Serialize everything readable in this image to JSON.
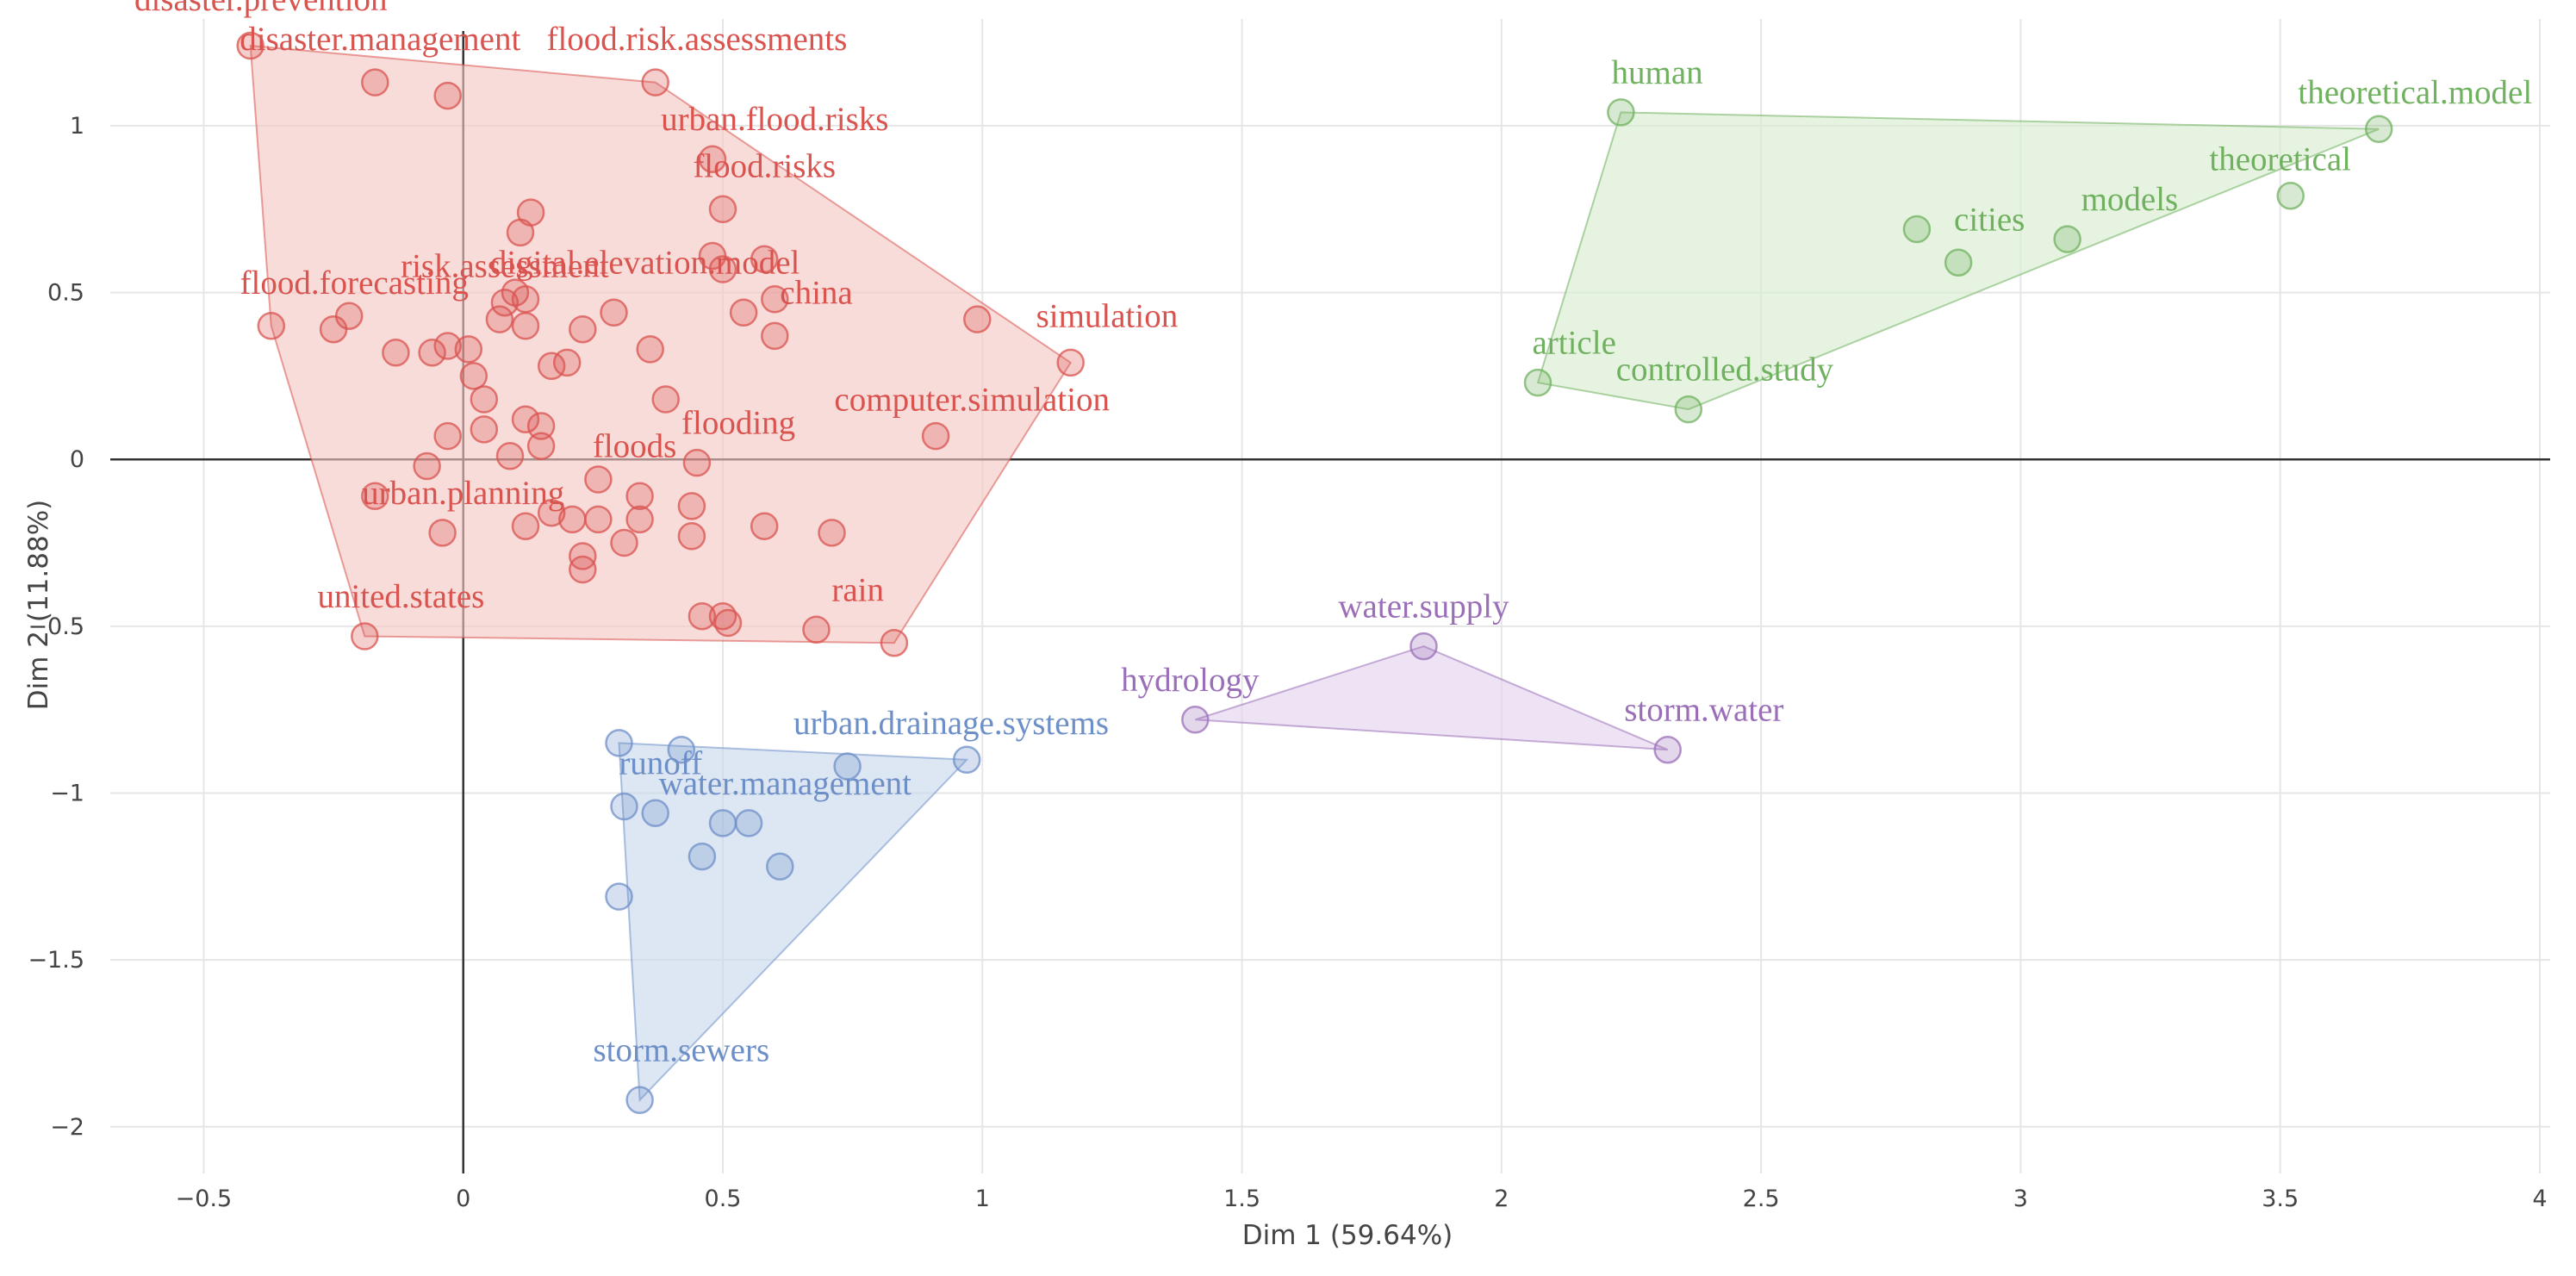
{
  "chart_data": {
    "type": "scatter",
    "xlabel": "Dim 1 (59.64%)",
    "ylabel": "Dim 2 (11.88%)",
    "xlim": [
      -0.68,
      4.02
    ],
    "ylim": [
      -2.14,
      1.32
    ],
    "x_ticks": [
      {
        "value": -0.5,
        "label": "−0.5"
      },
      {
        "value": 0,
        "label": "0"
      },
      {
        "value": 0.5,
        "label": "0.5"
      },
      {
        "value": 1,
        "label": "1"
      },
      {
        "value": 1.5,
        "label": "1.5"
      },
      {
        "value": 2,
        "label": "2"
      },
      {
        "value": 2.5,
        "label": "2.5"
      },
      {
        "value": 3,
        "label": "3"
      },
      {
        "value": 3.5,
        "label": "3.5"
      },
      {
        "value": 4,
        "label": "4"
      }
    ],
    "y_ticks": [
      {
        "value": 1,
        "label": "1"
      },
      {
        "value": 0.5,
        "label": "0.5"
      },
      {
        "value": 0,
        "label": "0"
      },
      {
        "value": -0.5,
        "label": "−0.5"
      },
      {
        "value": -1,
        "label": "−1"
      },
      {
        "value": -1.5,
        "label": "−1.5"
      },
      {
        "value": -2,
        "label": "−2"
      }
    ],
    "grid": true,
    "clusters": [
      {
        "name": "cluster-1",
        "color": "#d9534f",
        "fill": "#f4c7c3",
        "hull": [
          [
            -0.41,
            1.24
          ],
          [
            0.37,
            1.13
          ],
          [
            1.17,
            0.29
          ],
          [
            0.83,
            -0.55
          ],
          [
            -0.19,
            -0.53
          ],
          [
            -0.37,
            0.4
          ]
        ],
        "points": [
          [
            -0.41,
            1.24
          ],
          [
            -0.17,
            1.13
          ],
          [
            -0.03,
            1.09
          ],
          [
            0.37,
            1.13
          ],
          [
            0.48,
            0.9
          ],
          [
            0.5,
            0.75
          ],
          [
            0.11,
            0.68
          ],
          [
            0.13,
            0.74
          ],
          [
            0.48,
            0.61
          ],
          [
            0.5,
            0.57
          ],
          [
            0.58,
            0.6
          ],
          [
            0.6,
            0.48
          ],
          [
            0.54,
            0.44
          ],
          [
            0.6,
            0.37
          ],
          [
            0.99,
            0.42
          ],
          [
            1.17,
            0.29
          ],
          [
            -0.37,
            0.4
          ],
          [
            -0.22,
            0.43
          ],
          [
            -0.25,
            0.39
          ],
          [
            -0.13,
            0.32
          ],
          [
            -0.06,
            0.32
          ],
          [
            -0.03,
            0.34
          ],
          [
            0.01,
            0.33
          ],
          [
            0.02,
            0.25
          ],
          [
            0.04,
            0.18
          ],
          [
            0.04,
            0.09
          ],
          [
            0.07,
            0.42
          ],
          [
            0.08,
            0.47
          ],
          [
            0.1,
            0.5
          ],
          [
            0.12,
            0.48
          ],
          [
            0.12,
            0.4
          ],
          [
            0.17,
            0.28
          ],
          [
            0.2,
            0.29
          ],
          [
            0.23,
            0.39
          ],
          [
            0.29,
            0.44
          ],
          [
            0.36,
            0.33
          ],
          [
            0.39,
            0.18
          ],
          [
            0.12,
            0.12
          ],
          [
            0.15,
            0.1
          ],
          [
            0.15,
            0.04
          ],
          [
            0.09,
            0.01
          ],
          [
            -0.03,
            0.07
          ],
          [
            -0.07,
            -0.02
          ],
          [
            -0.17,
            -0.11
          ],
          [
            -0.04,
            -0.22
          ],
          [
            0.12,
            -0.2
          ],
          [
            0.17,
            -0.16
          ],
          [
            0.21,
            -0.18
          ],
          [
            0.23,
            -0.29
          ],
          [
            0.23,
            -0.33
          ],
          [
            0.26,
            -0.06
          ],
          [
            0.26,
            -0.18
          ],
          [
            0.31,
            -0.25
          ],
          [
            0.34,
            -0.11
          ],
          [
            0.34,
            -0.18
          ],
          [
            0.44,
            -0.14
          ],
          [
            0.44,
            -0.23
          ],
          [
            0.45,
            -0.01
          ],
          [
            0.58,
            -0.2
          ],
          [
            0.71,
            -0.22
          ],
          [
            0.91,
            0.07
          ],
          [
            0.46,
            -0.47
          ],
          [
            0.5,
            -0.47
          ],
          [
            0.51,
            -0.49
          ],
          [
            0.68,
            -0.51
          ],
          [
            0.83,
            -0.55
          ],
          [
            -0.19,
            -0.53
          ]
        ],
        "labels": [
          {
            "text": "disaster.prevention",
            "x": -0.39,
            "y": 1.38
          },
          {
            "text": "disaster.management",
            "x": -0.16,
            "y": 1.26
          },
          {
            "text": "flood.risk.assessments",
            "x": 0.45,
            "y": 1.26
          },
          {
            "text": "urban.flood.risks",
            "x": 0.6,
            "y": 1.02
          },
          {
            "text": "flood.risks",
            "x": 0.58,
            "y": 0.88
          },
          {
            "text": "risk.assessment",
            "x": 0.08,
            "y": 0.58
          },
          {
            "text": "digital.elevation.model",
            "x": 0.35,
            "y": 0.59
          },
          {
            "text": "flood.forecasting",
            "x": -0.21,
            "y": 0.53
          },
          {
            "text": "china",
            "x": 0.68,
            "y": 0.5
          },
          {
            "text": "simulation",
            "x": 1.24,
            "y": 0.43
          },
          {
            "text": "computer.simulation",
            "x": 0.98,
            "y": 0.18
          },
          {
            "text": "flooding",
            "x": 0.53,
            "y": 0.11
          },
          {
            "text": "floods",
            "x": 0.33,
            "y": 0.04
          },
          {
            "text": "urban.planning",
            "x": 0.0,
            "y": -0.1
          },
          {
            "text": "united.states",
            "x": -0.12,
            "y": -0.41
          },
          {
            "text": "rain",
            "x": 0.76,
            "y": -0.39
          }
        ]
      },
      {
        "name": "cluster-2",
        "color": "#6d8fc8",
        "fill": "#c8d6ec",
        "hull": [
          [
            0.3,
            -0.85
          ],
          [
            0.97,
            -0.9
          ],
          [
            0.34,
            -1.92
          ]
        ],
        "points": [
          [
            0.3,
            -0.85
          ],
          [
            0.42,
            -0.87
          ],
          [
            0.74,
            -0.92
          ],
          [
            0.97,
            -0.9
          ],
          [
            0.31,
            -1.04
          ],
          [
            0.37,
            -1.06
          ],
          [
            0.5,
            -1.09
          ],
          [
            0.55,
            -1.09
          ],
          [
            0.46,
            -1.19
          ],
          [
            0.61,
            -1.22
          ],
          [
            0.3,
            -1.31
          ],
          [
            0.34,
            -1.92
          ]
        ],
        "labels": [
          {
            "text": "urban.drainage.systems",
            "x": 0.94,
            "y": -0.79
          },
          {
            "text": "runoff",
            "x": 0.38,
            "y": -0.91
          },
          {
            "text": "water.management",
            "x": 0.62,
            "y": -0.97
          },
          {
            "text": "storm.sewers",
            "x": 0.42,
            "y": -1.77
          }
        ]
      },
      {
        "name": "cluster-3",
        "color": "#9b6fb8",
        "fill": "#e2d2ee",
        "hull": [
          [
            1.41,
            -0.78
          ],
          [
            1.85,
            -0.56
          ],
          [
            2.32,
            -0.87
          ]
        ],
        "points": [
          [
            1.41,
            -0.78
          ],
          [
            1.85,
            -0.56
          ],
          [
            2.32,
            -0.87
          ]
        ],
        "labels": [
          {
            "text": "water.supply",
            "x": 1.85,
            "y": -0.44
          },
          {
            "text": "hydrology",
            "x": 1.4,
            "y": -0.66
          },
          {
            "text": "storm.water",
            "x": 2.39,
            "y": -0.75
          }
        ]
      },
      {
        "name": "cluster-4",
        "color": "#70b15f",
        "fill": "#d6eccf",
        "hull": [
          [
            2.23,
            1.04
          ],
          [
            3.69,
            0.99
          ],
          [
            2.36,
            0.15
          ],
          [
            2.07,
            0.23
          ]
        ],
        "points": [
          [
            2.23,
            1.04
          ],
          [
            3.69,
            0.99
          ],
          [
            3.52,
            0.79
          ],
          [
            2.8,
            0.69
          ],
          [
            2.88,
            0.59
          ],
          [
            3.09,
            0.66
          ],
          [
            2.07,
            0.23
          ],
          [
            2.36,
            0.15
          ]
        ],
        "labels": [
          {
            "text": "human",
            "x": 2.3,
            "y": 1.16
          },
          {
            "text": "theoretical.model",
            "x": 3.76,
            "y": 1.1
          },
          {
            "text": "theoretical",
            "x": 3.5,
            "y": 0.9
          },
          {
            "text": "models",
            "x": 3.21,
            "y": 0.78
          },
          {
            "text": "cities",
            "x": 2.94,
            "y": 0.72
          },
          {
            "text": "article",
            "x": 2.14,
            "y": 0.35
          },
          {
            "text": "controlled.study",
            "x": 2.43,
            "y": 0.27
          }
        ]
      }
    ]
  }
}
